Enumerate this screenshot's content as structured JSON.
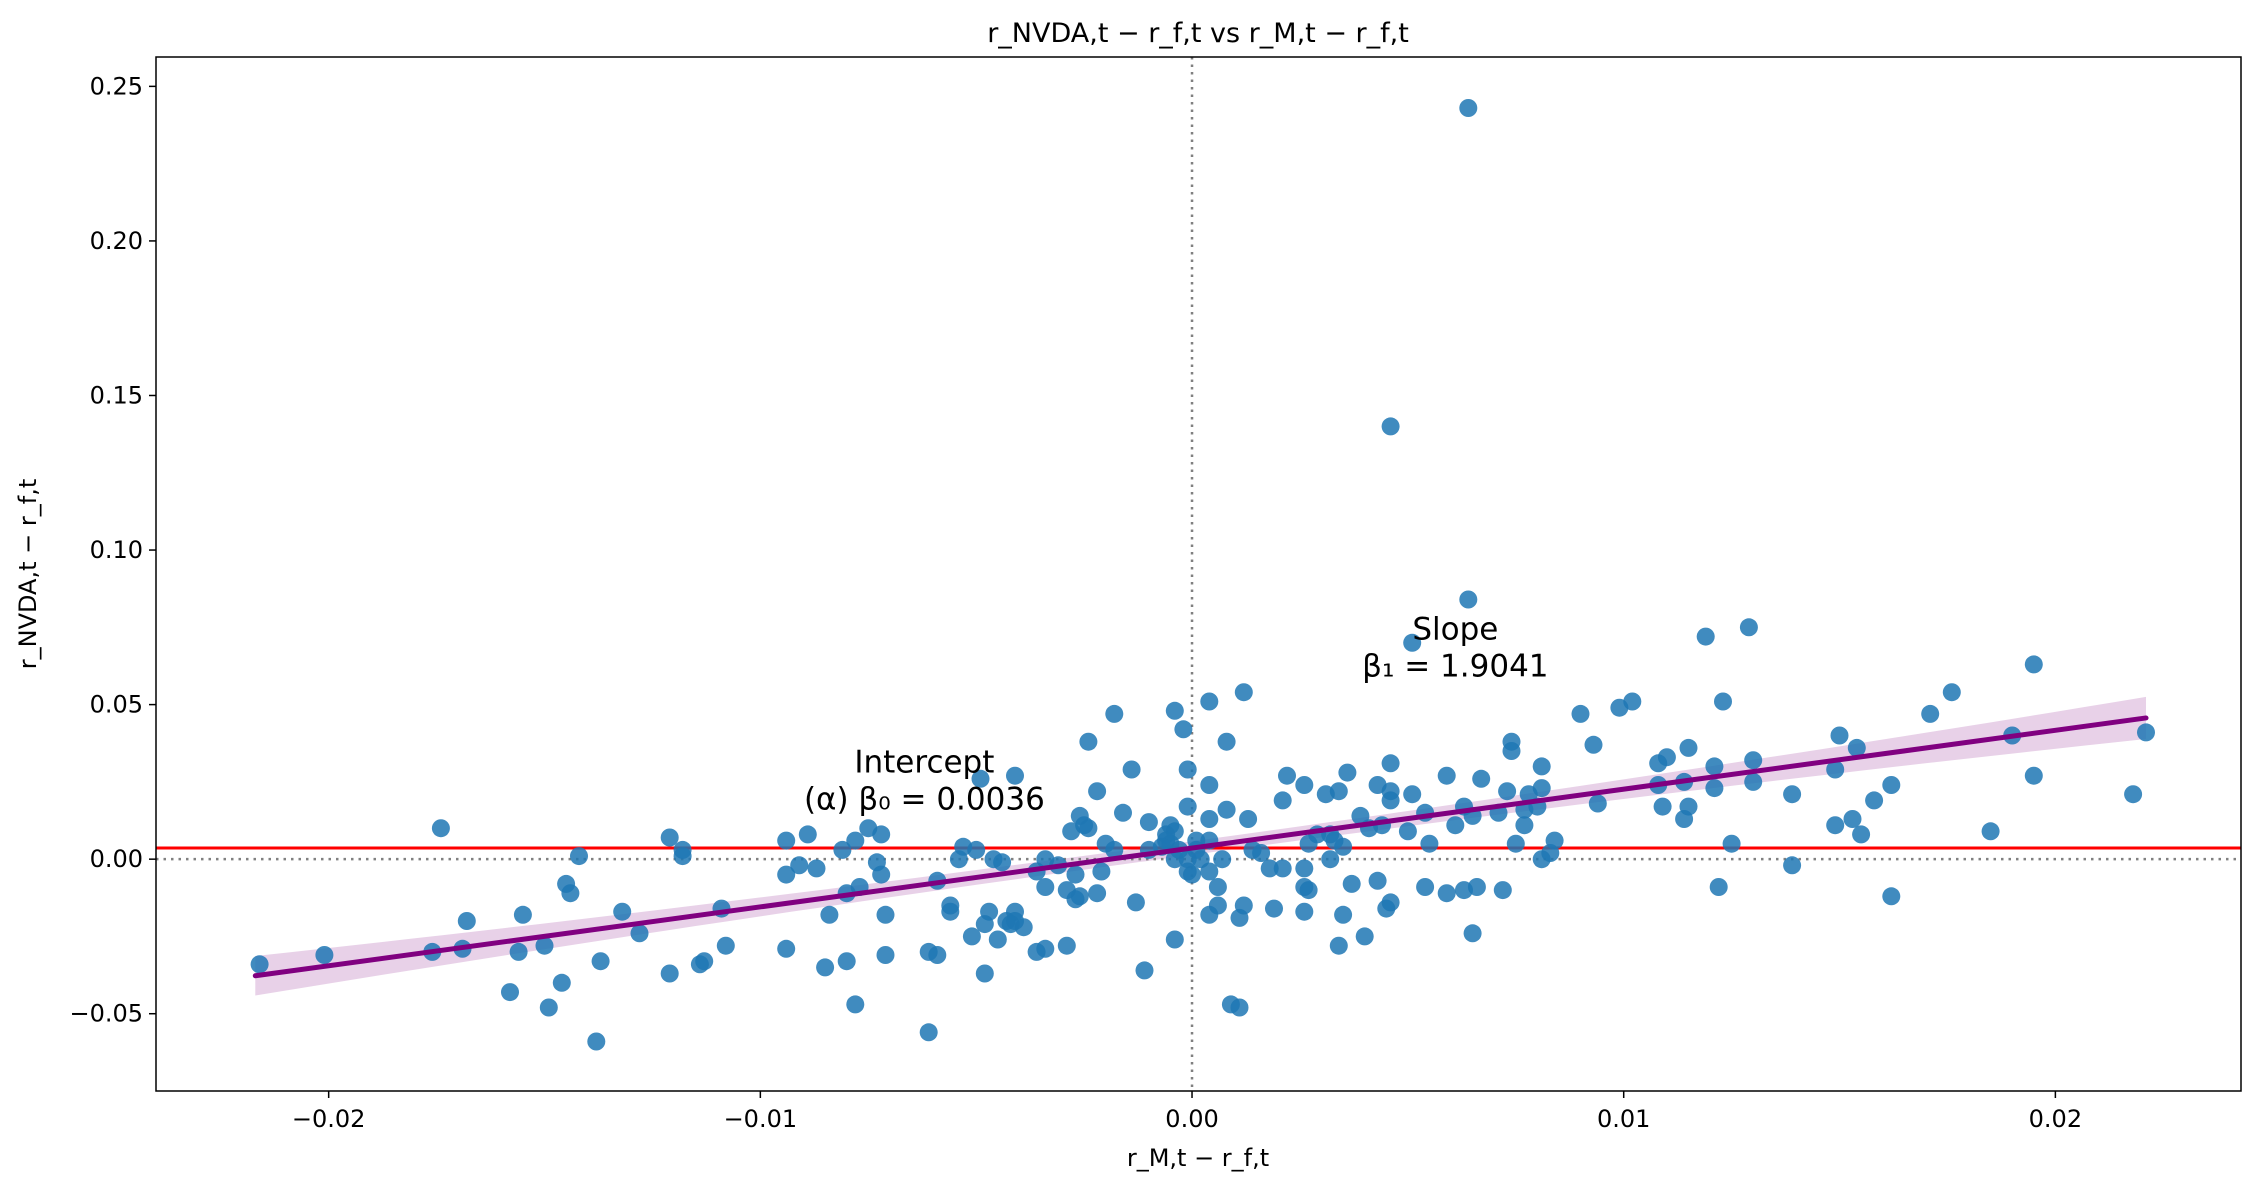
{
  "chart_data": {
    "type": "scatter",
    "title": "r_NVDA,t − r_f,t vs r_M,t − r_f,t",
    "xlabel": "r_M,t − r_f,t",
    "ylabel": "r_NVDA,t − r_f,t",
    "xlim": [
      -0.024,
      0.0243
    ],
    "ylim": [
      -0.075,
      0.2595
    ],
    "xticks": [
      -0.02,
      -0.01,
      0.0,
      0.01,
      0.02
    ],
    "xtick_labels": [
      "−0.02",
      "−0.01",
      "0.00",
      "0.01",
      "0.02"
    ],
    "yticks": [
      -0.05,
      0.0,
      0.05,
      0.1,
      0.15,
      0.2,
      0.25
    ],
    "ytick_labels": [
      "−0.05",
      "0.00",
      "0.05",
      "0.10",
      "0.15",
      "0.20",
      "0.25"
    ],
    "grid": false,
    "colors": {
      "points": "#1f77b4",
      "regression_line": "#800080",
      "confidence_band": "#dcb8dc",
      "intercept_line": "#ff0000",
      "zero_lines": "#808080"
    },
    "regression": {
      "intercept": 0.0036,
      "slope": 1.9041,
      "x_range": [
        -0.0217,
        0.0221
      ],
      "band_halfwidth_min": 0.0022,
      "band_halfwidth_max": 0.0068
    },
    "reference_lines": {
      "horizontal_intercept_y": 0.0036,
      "zero_dotted": true
    },
    "annotations": [
      {
        "x": -0.0062,
        "y": 0.028,
        "line1": "Intercept",
        "line2": "(α) β₀ = 0.0036"
      },
      {
        "x": 0.0061,
        "y": 0.071,
        "line1": "Slope",
        "line2": "β₁ = 1.9041"
      }
    ],
    "points": [
      [
        0.0064,
        0.243
      ],
      [
        0.0046,
        0.14
      ],
      [
        0.0064,
        0.084
      ],
      [
        0.0051,
        0.07
      ],
      [
        0.0129,
        0.075
      ],
      [
        0.0119,
        0.072
      ],
      [
        0.0195,
        0.063
      ],
      [
        0.0176,
        0.054
      ],
      [
        0.0171,
        0.047
      ],
      [
        0.0221,
        0.041
      ],
      [
        0.0218,
        0.021
      ],
      [
        0.0195,
        0.027
      ],
      [
        0.019,
        0.04
      ],
      [
        0.0185,
        0.009
      ],
      [
        0.0162,
        0.024
      ],
      [
        0.0162,
        -0.012
      ],
      [
        0.0158,
        0.019
      ],
      [
        0.0154,
        0.036
      ],
      [
        0.0155,
        0.008
      ],
      [
        0.0153,
        0.013
      ],
      [
        0.015,
        0.04
      ],
      [
        0.0149,
        0.029
      ],
      [
        0.0149,
        0.011
      ],
      [
        0.0139,
        0.021
      ],
      [
        0.0139,
        -0.002
      ],
      [
        0.013,
        0.032
      ],
      [
        0.013,
        0.025
      ],
      [
        0.0125,
        0.005
      ],
      [
        0.0122,
        -0.009
      ],
      [
        0.0121,
        0.03
      ],
      [
        0.0121,
        0.023
      ],
      [
        0.0115,
        0.036
      ],
      [
        0.0114,
        0.025
      ],
      [
        0.0115,
        0.017
      ],
      [
        0.0114,
        0.013
      ],
      [
        0.011,
        0.033
      ],
      [
        0.0108,
        0.031
      ],
      [
        0.0108,
        0.024
      ],
      [
        0.0109,
        0.017
      ],
      [
        0.0123,
        0.051
      ],
      [
        0.0102,
        0.051
      ],
      [
        0.0099,
        0.049
      ],
      [
        0.0093,
        0.037
      ],
      [
        0.009,
        0.047
      ],
      [
        0.0094,
        0.018
      ],
      [
        0.0084,
        0.006
      ],
      [
        0.0083,
        0.002
      ],
      [
        0.0081,
        0.0
      ],
      [
        0.0081,
        0.03
      ],
      [
        0.0081,
        0.023
      ],
      [
        0.008,
        0.017
      ],
      [
        0.0078,
        0.021
      ],
      [
        0.0077,
        0.016
      ],
      [
        0.0077,
        0.011
      ],
      [
        0.0075,
        0.005
      ],
      [
        0.0074,
        0.038
      ],
      [
        0.0074,
        0.035
      ],
      [
        0.0073,
        0.022
      ],
      [
        0.0071,
        0.015
      ],
      [
        0.0072,
        -0.01
      ],
      [
        0.0067,
        0.026
      ],
      [
        0.0066,
        -0.009
      ],
      [
        0.0065,
        -0.024
      ],
      [
        0.0065,
        0.014
      ],
      [
        0.0063,
        0.017
      ],
      [
        0.0063,
        -0.01
      ],
      [
        0.0061,
        0.011
      ],
      [
        0.0059,
        0.027
      ],
      [
        0.0059,
        -0.011
      ],
      [
        0.0055,
        0.005
      ],
      [
        0.0054,
        0.015
      ],
      [
        0.0054,
        -0.009
      ],
      [
        0.0051,
        0.021
      ],
      [
        0.005,
        0.009
      ],
      [
        0.0046,
        0.031
      ],
      [
        0.0046,
        0.022
      ],
      [
        0.0046,
        0.019
      ],
      [
        0.0046,
        -0.014
      ],
      [
        0.0045,
        -0.016
      ],
      [
        0.0044,
        0.011
      ],
      [
        0.0043,
        0.024
      ],
      [
        0.0041,
        0.01
      ],
      [
        0.004,
        -0.025
      ],
      [
        0.0043,
        -0.007
      ],
      [
        0.0039,
        0.014
      ],
      [
        0.0037,
        -0.008
      ],
      [
        0.0036,
        0.028
      ],
      [
        0.0035,
        0.004
      ],
      [
        0.0035,
        -0.018
      ],
      [
        0.0034,
        0.022
      ],
      [
        0.0034,
        -0.028
      ],
      [
        0.0033,
        0.006
      ],
      [
        0.0032,
        0.008
      ],
      [
        0.0032,
        0.0
      ],
      [
        0.0031,
        0.021
      ],
      [
        0.0029,
        0.008
      ],
      [
        0.0027,
        -0.01
      ],
      [
        0.0027,
        0.005
      ],
      [
        0.0026,
        0.024
      ],
      [
        0.0026,
        -0.003
      ],
      [
        0.0026,
        -0.009
      ],
      [
        0.0026,
        -0.017
      ],
      [
        0.0022,
        0.027
      ],
      [
        0.0021,
        0.019
      ],
      [
        0.0021,
        -0.003
      ],
      [
        0.0019,
        -0.016
      ],
      [
        0.0018,
        -0.003
      ],
      [
        0.0016,
        0.002
      ],
      [
        0.0014,
        0.003
      ],
      [
        0.0013,
        0.013
      ],
      [
        0.0012,
        0.054
      ],
      [
        0.0012,
        -0.015
      ],
      [
        0.0011,
        -0.019
      ],
      [
        0.0011,
        -0.048
      ],
      [
        0.0009,
        -0.047
      ],
      [
        0.0008,
        0.038
      ],
      [
        0.0008,
        0.016
      ],
      [
        0.0007,
        0.0
      ],
      [
        0.0006,
        -0.009
      ],
      [
        0.0006,
        -0.015
      ],
      [
        0.0004,
        0.051
      ],
      [
        0.0004,
        0.024
      ],
      [
        0.0004,
        0.013
      ],
      [
        0.0004,
        0.006
      ],
      [
        0.0004,
        -0.004
      ],
      [
        0.0004,
        -0.018
      ],
      [
        0.0002,
        0.0
      ],
      [
        0.0001,
        0.006
      ],
      [
        0.0001,
        0.003
      ],
      [
        0.0,
        -0.005
      ],
      [
        -0.0001,
        -0.004
      ],
      [
        -0.0001,
        0.0
      ],
      [
        -0.0001,
        0.017
      ],
      [
        -0.0001,
        0.029
      ],
      [
        -0.0002,
        0.042
      ],
      [
        -0.0003,
        0.003
      ],
      [
        -0.0004,
        0.009
      ],
      [
        -0.0005,
        0.011
      ],
      [
        -0.0005,
        0.005
      ],
      [
        -0.0004,
        0.0
      ],
      [
        -0.0004,
        0.048
      ],
      [
        -0.0004,
        -0.026
      ],
      [
        -0.0006,
        0.008
      ],
      [
        -0.0006,
        0.006
      ],
      [
        -0.0007,
        0.004
      ],
      [
        -0.001,
        0.012
      ],
      [
        -0.001,
        0.003
      ],
      [
        -0.0011,
        -0.036
      ],
      [
        -0.0013,
        -0.014
      ],
      [
        -0.0014,
        0.029
      ],
      [
        -0.0016,
        0.015
      ],
      [
        -0.0018,
        0.003
      ],
      [
        -0.0018,
        0.047
      ],
      [
        -0.002,
        0.005
      ],
      [
        -0.0021,
        -0.004
      ],
      [
        -0.0022,
        -0.011
      ],
      [
        -0.0022,
        0.022
      ],
      [
        -0.0024,
        0.01
      ],
      [
        -0.0024,
        0.038
      ],
      [
        -0.0025,
        0.011
      ],
      [
        -0.0026,
        -0.012
      ],
      [
        -0.0026,
        0.014
      ],
      [
        -0.0027,
        -0.005
      ],
      [
        -0.0027,
        -0.013
      ],
      [
        -0.0028,
        0.009
      ],
      [
        -0.0029,
        -0.01
      ],
      [
        -0.0029,
        -0.028
      ],
      [
        -0.0031,
        -0.002
      ],
      [
        -0.0034,
        -0.029
      ],
      [
        -0.0034,
        -0.009
      ],
      [
        -0.0034,
        -0.0
      ],
      [
        -0.0036,
        -0.03
      ],
      [
        -0.0036,
        -0.004
      ],
      [
        -0.0039,
        -0.022
      ],
      [
        -0.0041,
        -0.02
      ],
      [
        -0.0041,
        -0.017
      ],
      [
        -0.0041,
        0.027
      ],
      [
        -0.0042,
        -0.021
      ],
      [
        -0.0043,
        -0.02
      ],
      [
        -0.0044,
        -0.001
      ],
      [
        -0.0045,
        -0.026
      ],
      [
        -0.0046,
        0.0
      ],
      [
        -0.0047,
        -0.017
      ],
      [
        -0.0048,
        -0.037
      ],
      [
        -0.0048,
        -0.021
      ],
      [
        -0.0049,
        0.026
      ],
      [
        -0.005,
        0.003
      ],
      [
        -0.0051,
        -0.025
      ],
      [
        -0.0053,
        0.004
      ],
      [
        -0.0054,
        0.0
      ],
      [
        -0.0056,
        -0.015
      ],
      [
        -0.0056,
        -0.017
      ],
      [
        -0.0059,
        -0.031
      ],
      [
        -0.0059,
        -0.007
      ],
      [
        -0.0061,
        -0.056
      ],
      [
        -0.0061,
        -0.03
      ],
      [
        -0.0071,
        -0.031
      ],
      [
        -0.0071,
        -0.018
      ],
      [
        -0.0072,
        -0.005
      ],
      [
        -0.0072,
        0.008
      ],
      [
        -0.0073,
        -0.001
      ],
      [
        -0.0075,
        0.01
      ],
      [
        -0.0077,
        -0.009
      ],
      [
        -0.0078,
        0.006
      ],
      [
        -0.0078,
        -0.047
      ],
      [
        -0.008,
        -0.011
      ],
      [
        -0.008,
        -0.033
      ],
      [
        -0.0081,
        0.003
      ],
      [
        -0.0084,
        -0.018
      ],
      [
        -0.0085,
        -0.035
      ],
      [
        -0.0087,
        -0.003
      ],
      [
        -0.0089,
        0.008
      ],
      [
        -0.0091,
        -0.002
      ],
      [
        -0.0094,
        -0.005
      ],
      [
        -0.0094,
        -0.029
      ],
      [
        -0.0094,
        0.006
      ],
      [
        -0.0108,
        -0.028
      ],
      [
        -0.0109,
        -0.016
      ],
      [
        -0.0113,
        -0.033
      ],
      [
        -0.0114,
        -0.034
      ],
      [
        -0.0118,
        0.003
      ],
      [
        -0.0118,
        0.001
      ],
      [
        -0.0121,
        0.007
      ],
      [
        -0.0121,
        -0.037
      ],
      [
        -0.0128,
        -0.024
      ],
      [
        -0.0132,
        -0.017
      ],
      [
        -0.0137,
        -0.033
      ],
      [
        -0.0138,
        -0.059
      ],
      [
        -0.0142,
        0.001
      ],
      [
        -0.0144,
        -0.011
      ],
      [
        -0.0145,
        -0.008
      ],
      [
        -0.0146,
        -0.04
      ],
      [
        -0.0149,
        -0.048
      ],
      [
        -0.015,
        -0.028
      ],
      [
        -0.0155,
        -0.018
      ],
      [
        -0.0156,
        -0.03
      ],
      [
        -0.0158,
        -0.043
      ],
      [
        -0.0168,
        -0.02
      ],
      [
        -0.0169,
        -0.029
      ],
      [
        -0.0174,
        0.01
      ],
      [
        -0.0176,
        -0.03
      ],
      [
        -0.0201,
        -0.031
      ],
      [
        -0.0216,
        -0.034
      ]
    ]
  }
}
